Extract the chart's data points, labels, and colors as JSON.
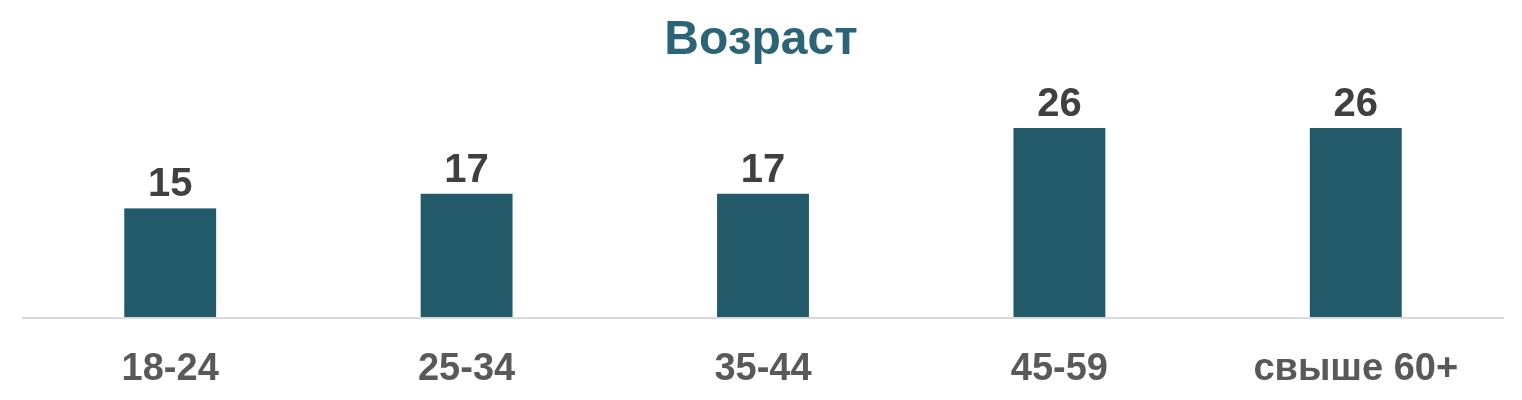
{
  "chart_data": {
    "type": "bar",
    "title": "Возраст",
    "categories": [
      "18-24",
      "25-34",
      "35-44",
      "45-59",
      "свыше 60+"
    ],
    "values": [
      15,
      17,
      17,
      26,
      26
    ],
    "color": "#225a6a",
    "data_labels": true
  }
}
